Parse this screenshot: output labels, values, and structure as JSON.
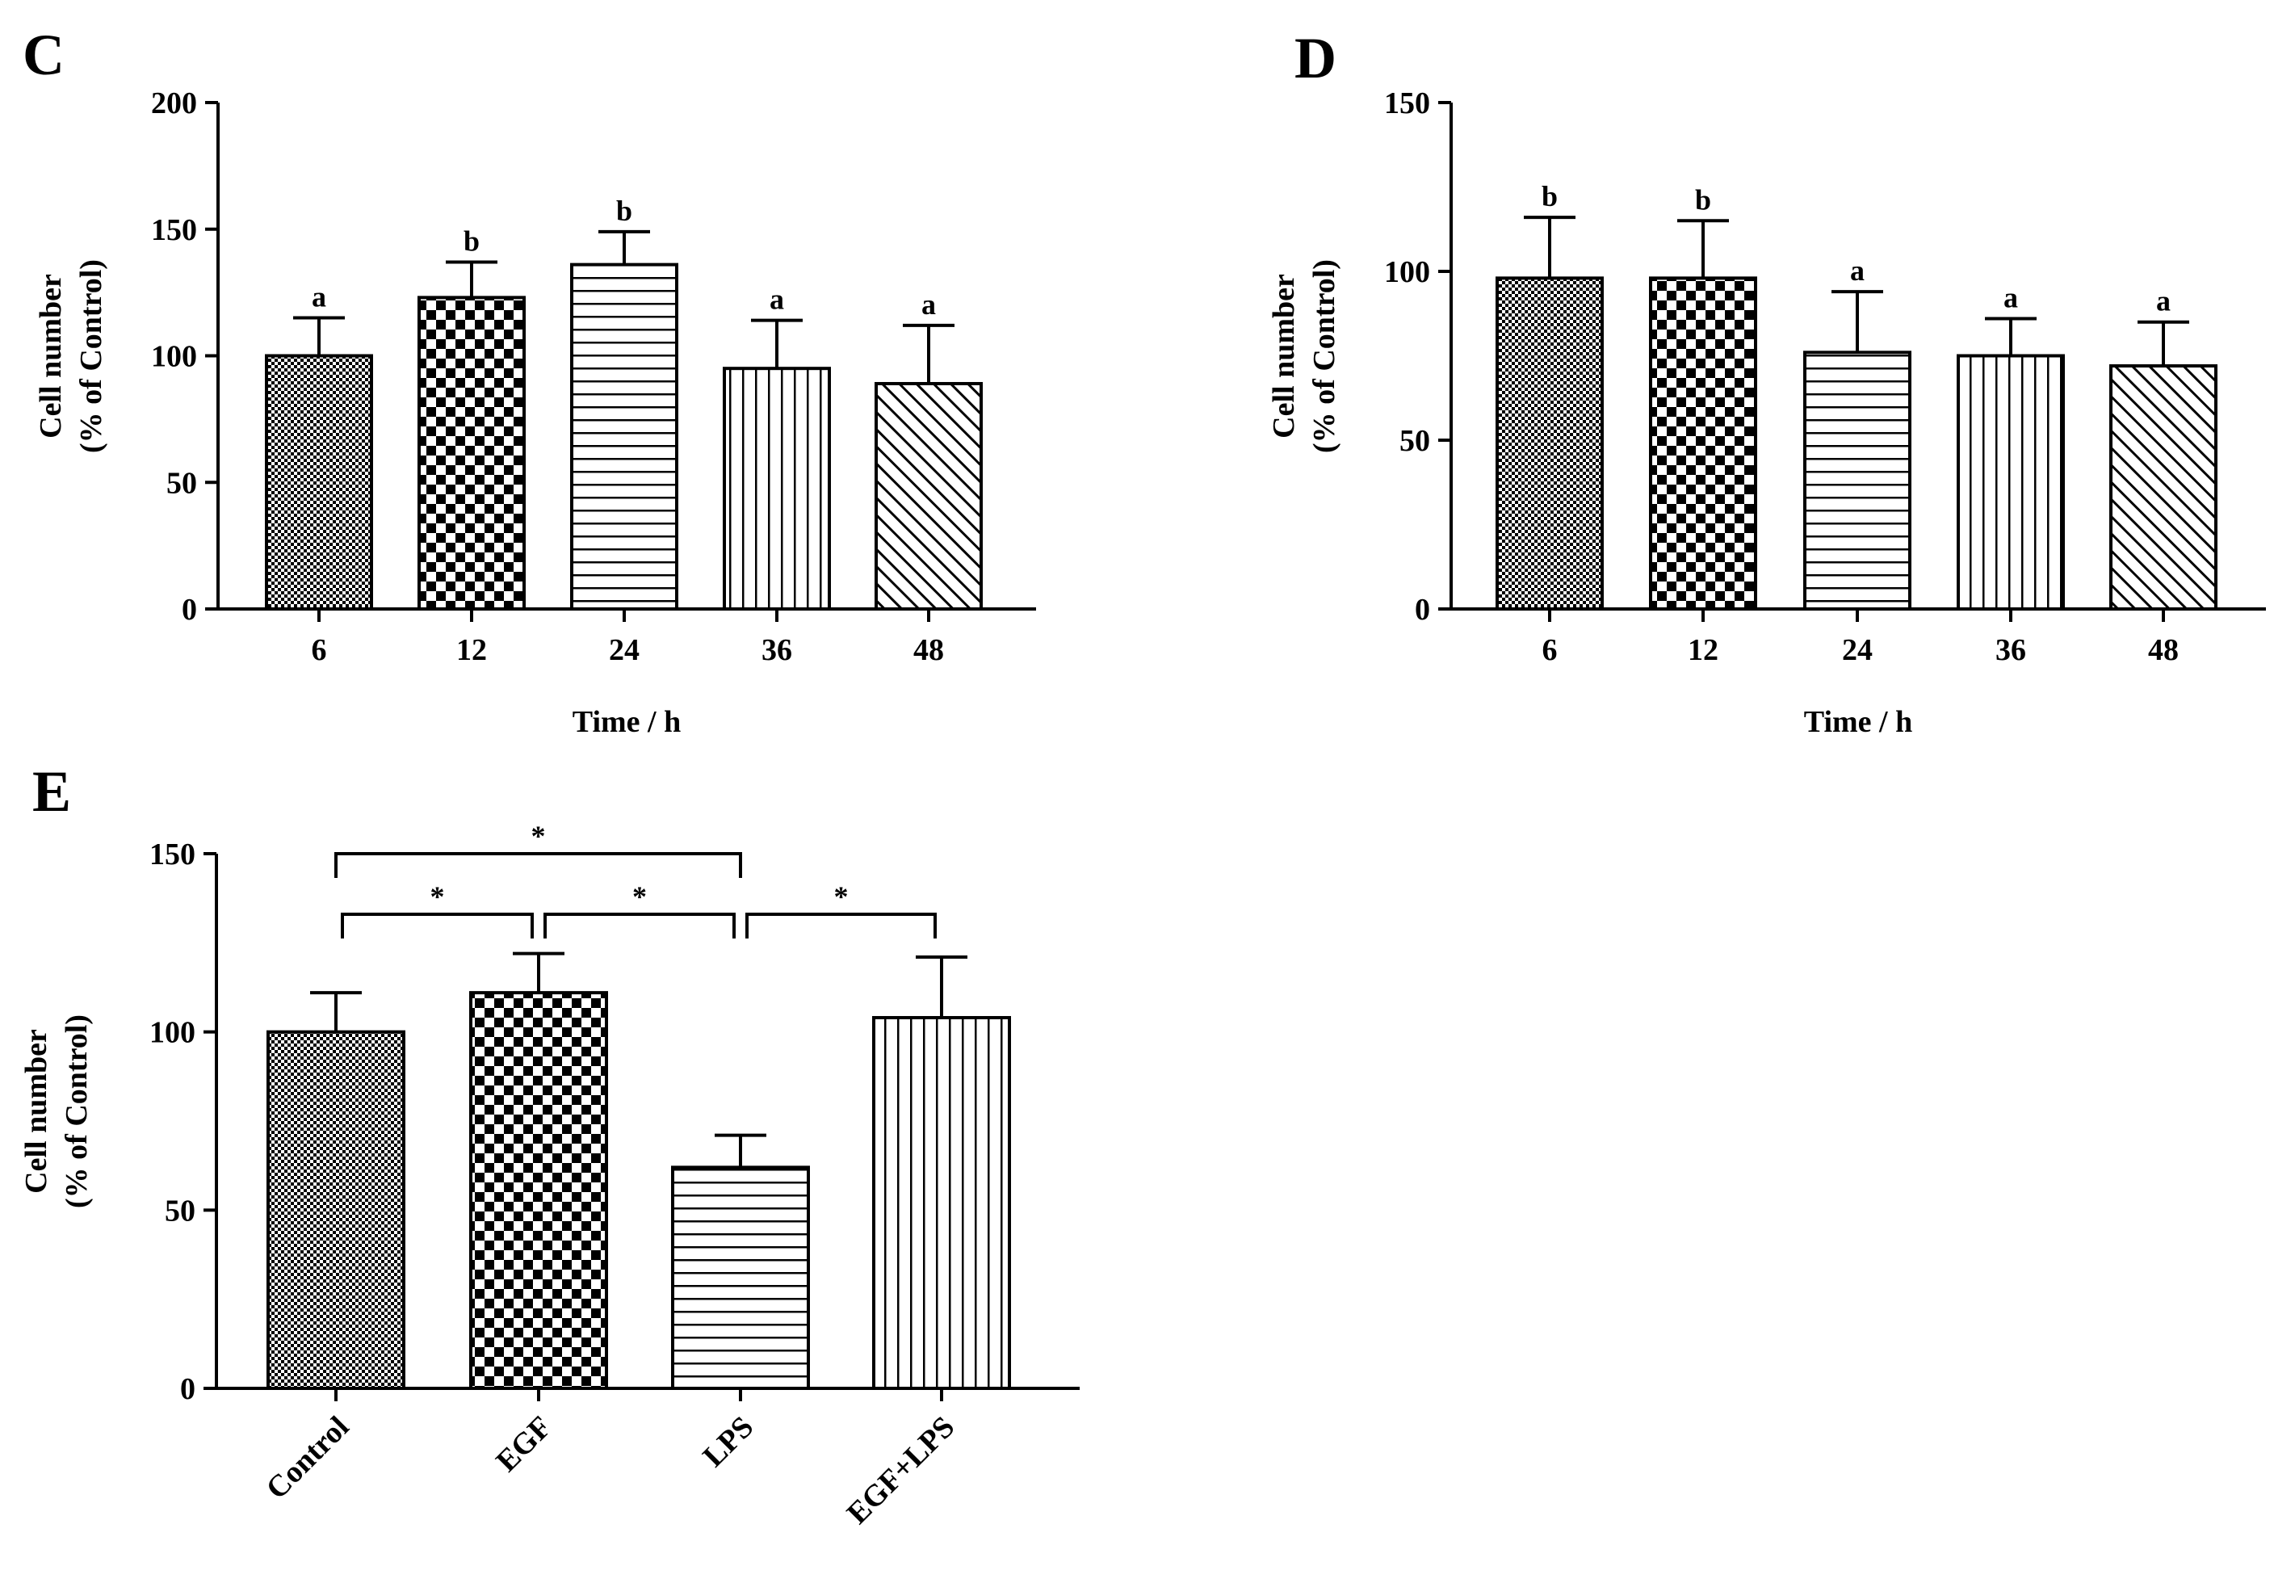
{
  "chart_data": [
    {
      "panel": "C",
      "type": "bar",
      "ylabel_lines": [
        "Cell number",
        "(% of Control)"
      ],
      "xlabel": "Time / h",
      "ylim": [
        0,
        200
      ],
      "yticks": [
        0,
        50,
        100,
        150,
        200
      ],
      "categories": [
        "6",
        "12",
        "24",
        "36",
        "48"
      ],
      "values": [
        100,
        123,
        136,
        95,
        89
      ],
      "errors": [
        15,
        14,
        13,
        19,
        23
      ],
      "sig_labels": [
        "a",
        "b",
        "b",
        "a",
        "a"
      ],
      "patterns": [
        "fine-check",
        "coarse-check",
        "horizontal",
        "vertical",
        "diagonal"
      ]
    },
    {
      "panel": "D",
      "type": "bar",
      "ylabel_lines": [
        "Cell number",
        "(% of Control)"
      ],
      "xlabel": "Time / h",
      "ylim": [
        0,
        150
      ],
      "yticks": [
        0,
        50,
        100,
        150
      ],
      "categories": [
        "6",
        "12",
        "24",
        "36",
        "48"
      ],
      "values": [
        98,
        98,
        76,
        75,
        72
      ],
      "errors": [
        18,
        17,
        18,
        11,
        13
      ],
      "sig_labels": [
        "b",
        "b",
        "a",
        "a",
        "a"
      ],
      "patterns": [
        "fine-check",
        "coarse-check",
        "horizontal",
        "vertical",
        "diagonal"
      ]
    },
    {
      "panel": "E",
      "type": "bar",
      "ylabel_lines": [
        "Cell number",
        "(% of Control)"
      ],
      "xlabel": "",
      "ylim": [
        0,
        150
      ],
      "yticks": [
        0,
        50,
        100,
        150
      ],
      "categories": [
        "Control",
        "EGF",
        "LPS",
        "EGF+LPS"
      ],
      "values": [
        100,
        111,
        62,
        104
      ],
      "errors": [
        11,
        11,
        9,
        17
      ],
      "patterns": [
        "fine-check",
        "coarse-check",
        "horizontal",
        "vertical"
      ],
      "comparisons": [
        {
          "from": 0,
          "to": 2,
          "label": "*",
          "level": 150
        },
        {
          "from": 0,
          "to": 1,
          "label": "*",
          "level": 133
        },
        {
          "from": 1,
          "to": 2,
          "label": "*",
          "level": 133
        },
        {
          "from": 2,
          "to": 3,
          "label": "*",
          "level": 133
        }
      ]
    }
  ]
}
